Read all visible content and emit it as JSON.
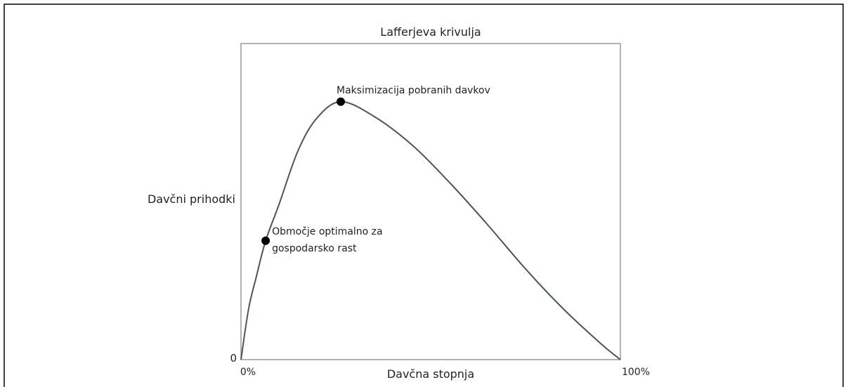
{
  "chart_data": {
    "type": "line",
    "title": "Lafferjeva krivulja",
    "x_label": "Davčna stopnja",
    "y_label": "Davčni prihodki",
    "x": [
      0,
      2,
      4,
      6.5,
      10,
      15,
      20,
      26.3,
      35,
      45,
      55,
      65,
      75,
      85,
      95,
      100
    ],
    "series": [
      {
        "color": "#4a5a4a",
        "values": [
          0,
          16,
          26,
          37.6,
          49,
          66,
          76.4,
          81.6,
          77,
          68,
          56,
          42.7,
          28.7,
          16,
          4.9,
          0
        ]
      }
    ],
    "xlim": [
      0,
      100
    ],
    "xticks": [
      {
        "value": 0,
        "label": "0%"
      },
      {
        "value": 100,
        "label": "100%"
      }
    ],
    "ylim": [
      0,
      100
    ],
    "yticks": [
      0
    ],
    "annotations": [
      {
        "lines": [
          "Maksimizacija pobranih davkov"
        ],
        "x": 26.3,
        "y": 81.6
      },
      {
        "lines": [
          "Območje optimalno za",
          "gospodarsko rast"
        ],
        "x": 6.5,
        "y": 37.6
      }
    ]
  }
}
